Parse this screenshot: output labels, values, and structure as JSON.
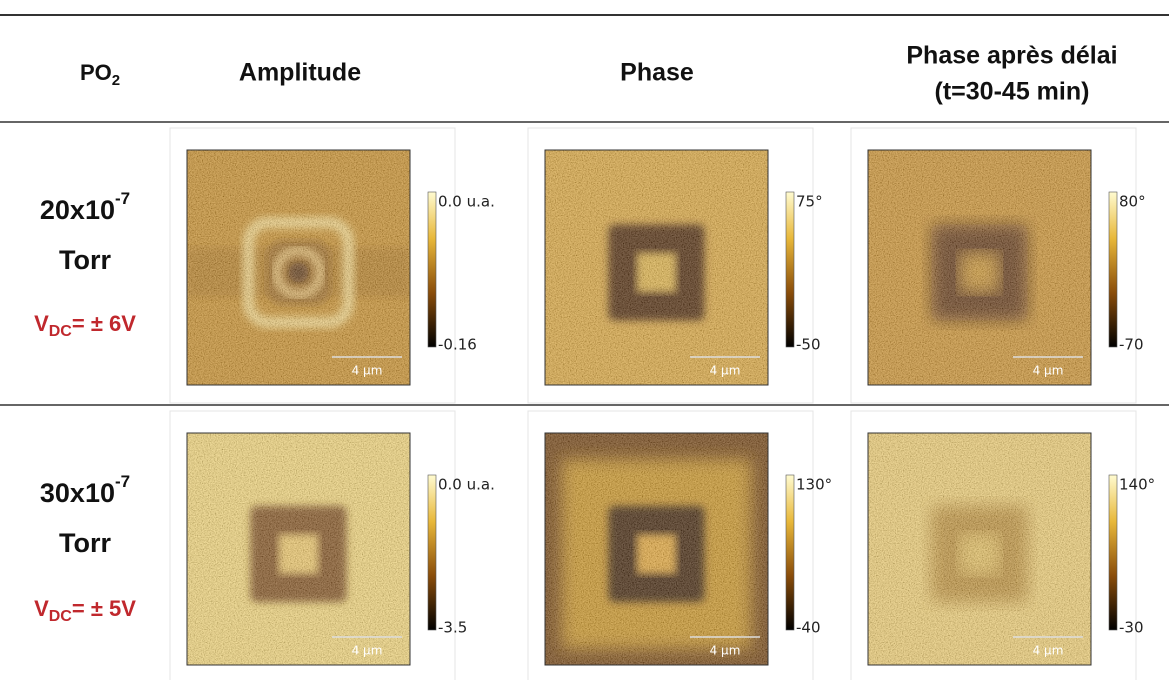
{
  "header": {
    "po": "PO",
    "po_sub": "2",
    "amplitude": "Amplitude",
    "phase": "Phase",
    "delay_line1": "Phase après délai",
    "delay_line2": "(t=30-45 min)"
  },
  "rows": [
    {
      "pressure": "20x10",
      "exponent": "-7",
      "unit": "Torr",
      "voltage": "V",
      "voltage_sub": "DC",
      "voltage_rest": "= ± 6V",
      "panels": [
        {
          "scale_max": "0.0 u.a.",
          "scale_min": "-0.16",
          "scale_bar": "4 µm"
        },
        {
          "scale_max": "75°",
          "scale_min": "-50",
          "scale_bar": "4 µm"
        },
        {
          "scale_max": "80°",
          "scale_min": "-70",
          "scale_bar": "4 µm"
        }
      ]
    },
    {
      "pressure": "30x10",
      "exponent": "-7",
      "unit": "Torr",
      "voltage": "V",
      "voltage_sub": "DC",
      "voltage_rest": "= ± 5V",
      "panels": [
        {
          "scale_max": "0.0 u.a.",
          "scale_min": "-3.5",
          "scale_bar": "4 µm"
        },
        {
          "scale_max": "130°",
          "scale_min": "-40",
          "scale_bar": "4 µm"
        },
        {
          "scale_max": "140°",
          "scale_min": "-30",
          "scale_bar": "4 µm"
        }
      ]
    }
  ]
}
